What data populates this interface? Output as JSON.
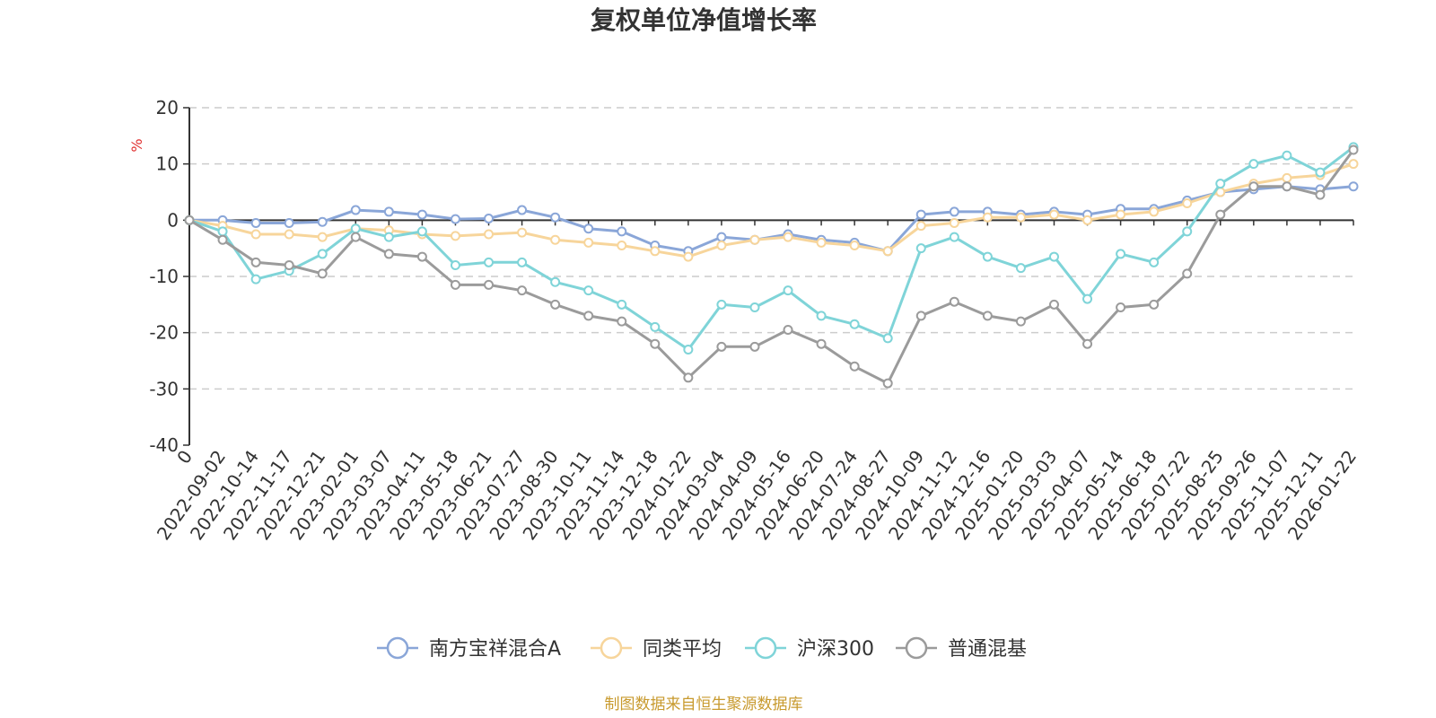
{
  "chart_data": {
    "type": "line",
    "title": "复权单位净值增长率",
    "ylabel": "%",
    "ylim": [
      -40,
      20
    ],
    "yticks": [
      20,
      10,
      0,
      -10,
      -20,
      -30,
      -40
    ],
    "ytick_labels": [
      "20",
      "10",
      "0",
      "-10",
      "-20",
      "-30",
      "-40"
    ],
    "grid": true,
    "legend_position": "bottom",
    "x_labels": [
      "0",
      "2022-09-02",
      "2022-10-14",
      "2022-11-17",
      "2022-12-21",
      "2023-02-01",
      "2023-03-07",
      "2023-04-11",
      "2023-05-18",
      "2023-06-21",
      "2023-07-27",
      "2023-08-30",
      "2023-10-11",
      "2023-11-14",
      "2023-12-18",
      "2024-01-22",
      "2024-03-04",
      "2024-04-09",
      "2024-05-16",
      "2024-06-20",
      "2024-07-24",
      "2024-08-27",
      "2024-10-09",
      "2024-11-12",
      "2024-12-16",
      "2025-01-20",
      "2025-03-03",
      "2025-04-07",
      "2025-05-14",
      "2025-06-18",
      "2025-07-22",
      "2025-08-25",
      "2025-09-26",
      "2025-11-07",
      "2025-12-11",
      "2026-01-22"
    ],
    "series": [
      {
        "name": "南方宝祥混合A",
        "color": "#8aa6d8",
        "values": [
          0,
          0,
          -0.5,
          -0.5,
          -0.3,
          1.8,
          1.5,
          1.0,
          0.2,
          0.3,
          1.8,
          0.5,
          -1.5,
          -2.0,
          -4.5,
          -5.5,
          -3.0,
          -3.5,
          -2.5,
          -3.5,
          -4.0,
          -5.5,
          1.0,
          1.5,
          1.5,
          1.0,
          1.5,
          1.0,
          2.0,
          2.0,
          3.5,
          5.0,
          5.5,
          6.0,
          5.5,
          6.0
        ]
      },
      {
        "name": "同类平均",
        "color": "#f7d59b",
        "values": [
          0,
          -1.0,
          -2.5,
          -2.5,
          -3.0,
          -1.5,
          -1.8,
          -2.5,
          -2.8,
          -2.5,
          -2.2,
          -3.5,
          -4.0,
          -4.5,
          -5.5,
          -6.5,
          -4.5,
          -3.5,
          -3.0,
          -4.0,
          -4.5,
          -5.5,
          -1.0,
          -0.5,
          0.5,
          0.5,
          1.0,
          0.0,
          1.0,
          1.5,
          3.0,
          5.0,
          6.5,
          7.5,
          8.0,
          10.0
        ]
      },
      {
        "name": "沪深300",
        "color": "#7fd4d8",
        "values": [
          0,
          -2.0,
          -10.5,
          -9.0,
          -6.0,
          -1.5,
          -3.0,
          -2.0,
          -8.0,
          -7.5,
          -7.5,
          -11.0,
          -12.5,
          -15.0,
          -19.0,
          -23.0,
          -15.0,
          -15.5,
          -12.5,
          -17.0,
          -18.5,
          -21.0,
          -5.0,
          -3.0,
          -6.5,
          -8.5,
          -6.5,
          -14.0,
          -6.0,
          -7.5,
          -2.0,
          6.5,
          10.0,
          11.5,
          8.5,
          13.0
        ]
      },
      {
        "name": "普通混基",
        "color": "#9b9b9b",
        "values": [
          0,
          -3.5,
          -7.5,
          -8.0,
          -9.5,
          -3.0,
          -6.0,
          -6.5,
          -11.5,
          -11.5,
          -12.5,
          -15.0,
          -17.0,
          -18.0,
          -22.0,
          -28.0,
          -22.5,
          -22.5,
          -19.5,
          -22.0,
          -26.0,
          -29.0,
          -17.0,
          -14.5,
          -17.0,
          -18.0,
          -15.0,
          -22.0,
          -15.5,
          -15.0,
          -9.5,
          1.0,
          6.0,
          6.0,
          4.5,
          12.5
        ]
      }
    ]
  },
  "legend": {
    "items": [
      "南方宝祥混合A",
      "同类平均",
      "沪深300",
      "普通混基"
    ]
  },
  "source_text": "制图数据来自恒生聚源数据库"
}
